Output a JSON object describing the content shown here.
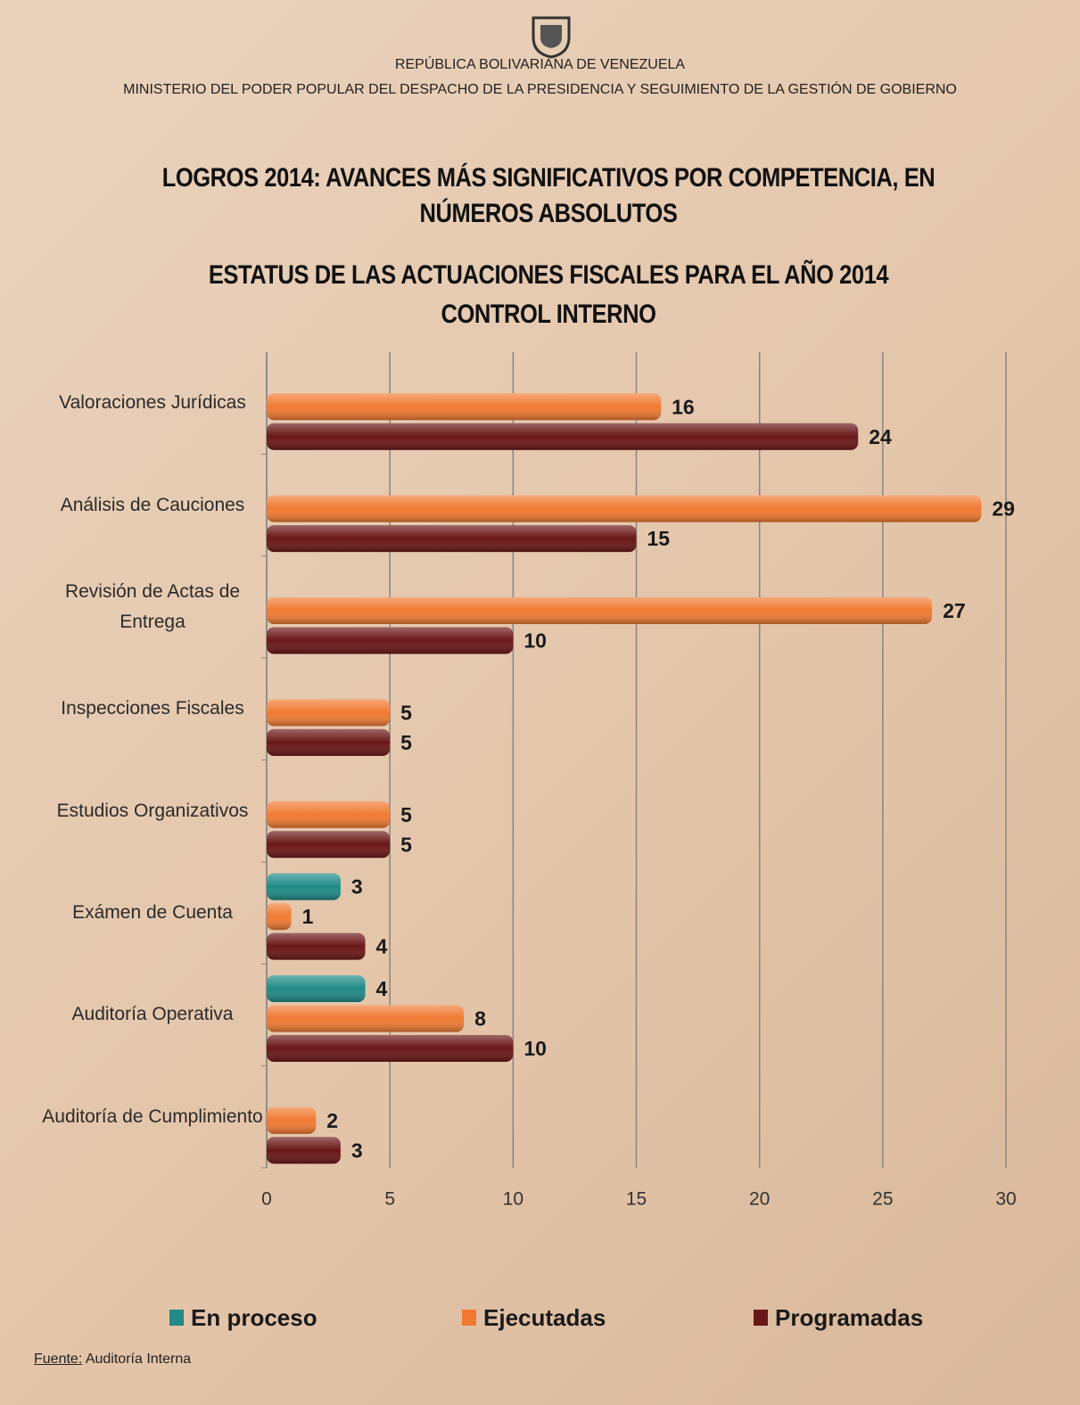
{
  "header": {
    "republic": "REPÚBLICA BOLIVARIANA DE VENEZUELA",
    "ministry": "MINISTERIO DEL PODER POPULAR DEL DESPACHO DE LA PRESIDENCIA Y SEGUIMIENTO DE LA GESTIÓN DE GOBIERNO"
  },
  "chart_data": {
    "type": "hbar",
    "title": "LOGROS 2014: AVANCES MÁS SIGNIFICATIVOS POR COMPETENCIA, EN NÚMEROS ABSOLUTOS",
    "subtitle": "ESTATUS DE LAS ACTUACIONES FISCALES PARA EL AÑO 2014",
    "subtitle2": "CONTROL INTERNO",
    "categories": [
      "Valoraciones Jurídicas",
      "Análisis de Cauciones",
      "Revisión de Actas de Entrega",
      "Inspecciones Fiscales",
      "Estudios Organizativos",
      "Exámen de Cuenta",
      "Auditoría Operativa",
      "Auditoría de Cumplimiento"
    ],
    "series": [
      {
        "name": "En proceso",
        "color": "#1f8a86",
        "values": [
          null,
          null,
          null,
          null,
          null,
          3,
          4,
          null
        ]
      },
      {
        "name": "Ejecutadas",
        "color": "#f07a32",
        "values": [
          16,
          29,
          27,
          5,
          5,
          1,
          8,
          2
        ]
      },
      {
        "name": "Programadas",
        "color": "#6a1616",
        "values": [
          24,
          15,
          10,
          5,
          5,
          4,
          10,
          3
        ]
      }
    ],
    "xlim": [
      0,
      30
    ],
    "xticks": [
      0,
      5,
      10,
      15,
      20,
      25,
      30
    ],
    "grid": true
  },
  "source": {
    "label": "Fuente:",
    "text": "Auditoría Interna"
  }
}
